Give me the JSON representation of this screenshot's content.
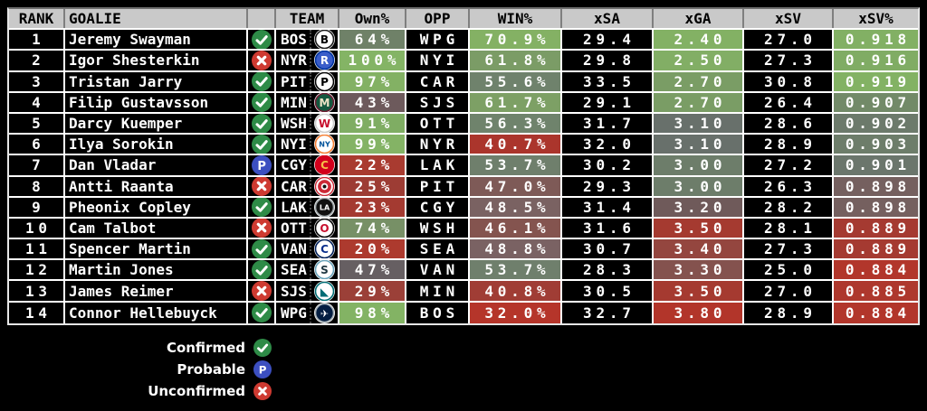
{
  "header": {
    "rank": "RANK",
    "goalie": "GOALIE",
    "status": "",
    "team": "TEAM",
    "own": "Own%",
    "opp": "OPP",
    "win": "WIN%",
    "xsa": "xSA",
    "xga": "xGA",
    "xsv": "xSV",
    "xsvpct": "xSV%"
  },
  "rows": [
    {
      "rank": "1",
      "goalie": "Jeremy Swayman",
      "status": "confirmed",
      "team": "BOS",
      "own": "64%",
      "own_bg": "#6f8168",
      "opp": "WPG",
      "win": "70.9%",
      "win_bg": "#84b164",
      "xsa": "29.4",
      "xga": "2.40",
      "xga_bg": "#83b164",
      "xsv": "27.0",
      "xsvpct": "0.918",
      "xsvpct_bg": "#82b064"
    },
    {
      "rank": "2",
      "goalie": "Igor Shesterkin",
      "status": "unconfirmed",
      "team": "NYR",
      "own": "100%",
      "own_bg": "#84b465",
      "opp": "NYI",
      "win": "61.8%",
      "win_bg": "#7b9c66",
      "xsa": "29.8",
      "xga": "2.50",
      "xga_bg": "#82ae65",
      "xsv": "27.3",
      "xsvpct": "0.916",
      "xsvpct_bg": "#80ac64"
    },
    {
      "rank": "3",
      "goalie": "Tristan Jarry",
      "status": "confirmed",
      "team": "PIT",
      "own": "97%",
      "own_bg": "#83b164",
      "opp": "CAR",
      "win": "55.6%",
      "win_bg": "#6f826c",
      "xsa": "33.5",
      "xga": "2.70",
      "xga_bg": "#7a9d65",
      "xsv": "30.8",
      "xsvpct": "0.919",
      "xsvpct_bg": "#83b264"
    },
    {
      "rank": "4",
      "goalie": "Filip Gustavsson",
      "status": "confirmed",
      "team": "MIN",
      "own": "43%",
      "own_bg": "#6d5a5c",
      "opp": "SJS",
      "win": "61.7%",
      "win_bg": "#7da065",
      "xsa": "29.1",
      "xga": "2.70",
      "xga_bg": "#7a9d65",
      "xsv": "26.4",
      "xsvpct": "0.907",
      "xsvpct_bg": "#728a68"
    },
    {
      "rank": "5",
      "goalie": "Darcy Kuemper",
      "status": "confirmed",
      "team": "WSH",
      "own": "91%",
      "own_bg": "#7fad63",
      "opp": "OTT",
      "win": "56.3%",
      "win_bg": "#6f836c",
      "xsa": "31.7",
      "xga": "3.10",
      "xga_bg": "#68706b",
      "xsv": "28.6",
      "xsvpct": "0.902",
      "xsvpct_bg": "#6c7a6b"
    },
    {
      "rank": "6",
      "goalie": "Ilya Sorokin",
      "status": "confirmed",
      "team": "NYI",
      "own": "99%",
      "own_bg": "#84b365",
      "opp": "NYR",
      "win": "40.7%",
      "win_bg": "#ab352c",
      "xsa": "32.0",
      "xga": "3.10",
      "xga_bg": "#68706b",
      "xsv": "28.9",
      "xsvpct": "0.903",
      "xsvpct_bg": "#6d7d6a"
    },
    {
      "rank": "7",
      "goalie": "Dan Vladar",
      "status": "probable",
      "team": "CGY",
      "own": "22%",
      "own_bg": "#a93b30",
      "opp": "LAK",
      "win": "53.7%",
      "win_bg": "#6f7f6c",
      "xsa": "30.2",
      "xga": "3.00",
      "xga_bg": "#6d7d6a",
      "xsv": "27.2",
      "xsvpct": "0.901",
      "xsvpct_bg": "#6b766c"
    },
    {
      "rank": "8",
      "goalie": "Antti Raanta",
      "status": "unconfirmed",
      "team": "CAR",
      "own": "25%",
      "own_bg": "#9d3c34",
      "opp": "PIT",
      "win": "47.0%",
      "win_bg": "#7e5a57",
      "xsa": "29.3",
      "xga": "3.00",
      "xga_bg": "#6d7d6a",
      "xsv": "26.3",
      "xsvpct": "0.898",
      "xsvpct_bg": "#75605f"
    },
    {
      "rank": "9",
      "goalie": "Pheonix Copley",
      "status": "confirmed",
      "team": "LAK",
      "own": "23%",
      "own_bg": "#a43a31",
      "opp": "CGY",
      "win": "48.5%",
      "win_bg": "#7a6262",
      "xsa": "31.4",
      "xga": "3.20",
      "xga_bg": "#6f5a5a",
      "xsv": "28.2",
      "xsvpct": "0.898",
      "xsvpct_bg": "#75605f"
    },
    {
      "rank": "10",
      "goalie": "Cam Talbot",
      "status": "unconfirmed",
      "team": "OTT",
      "own": "74%",
      "own_bg": "#779066",
      "opp": "WSH",
      "win": "46.1%",
      "win_bg": "#84544f",
      "xsa": "31.6",
      "xga": "3.50",
      "xga_bg": "#a53a30",
      "xsv": "28.1",
      "xsvpct": "0.889",
      "xsvpct_bg": "#a53a31"
    },
    {
      "rank": "11",
      "goalie": "Spencer Martin",
      "status": "confirmed",
      "team": "VAN",
      "own": "20%",
      "own_bg": "#ad3a2e",
      "opp": "SEA",
      "win": "48.8%",
      "win_bg": "#7a6263",
      "xsa": "30.7",
      "xga": "3.40",
      "xga_bg": "#94463f",
      "xsv": "27.3",
      "xsvpct": "0.889",
      "xsvpct_bg": "#a53a31"
    },
    {
      "rank": "12",
      "goalie": "Martin Jones",
      "status": "confirmed",
      "team": "SEA",
      "own": "47%",
      "own_bg": "#665f62",
      "opp": "VAN",
      "win": "53.7%",
      "win_bg": "#6f7f6c",
      "xsa": "28.3",
      "xga": "3.30",
      "xga_bg": "#84524e",
      "xsv": "25.0",
      "xsvpct": "0.884",
      "xsvpct_bg": "#b2362b"
    },
    {
      "rank": "13",
      "goalie": "James Reimer",
      "status": "unconfirmed",
      "team": "SJS",
      "own": "29%",
      "own_bg": "#9b4038",
      "opp": "MIN",
      "win": "40.8%",
      "win_bg": "#a03d35",
      "xsa": "30.5",
      "xga": "3.50",
      "xga_bg": "#a53a30",
      "xsv": "27.0",
      "xsvpct": "0.885",
      "xsvpct_bg": "#ae382d"
    },
    {
      "rank": "14",
      "goalie": "Connor Hellebuyck",
      "status": "confirmed",
      "team": "WPG",
      "own": "98%",
      "own_bg": "#83b364",
      "opp": "BOS",
      "win": "32.0%",
      "win_bg": "#b5352a",
      "xsa": "32.7",
      "xga": "3.80",
      "xga_bg": "#b2352a",
      "xsv": "28.9",
      "xsvpct": "0.884",
      "xsvpct_bg": "#b2362b"
    }
  ],
  "legend": [
    {
      "label": "Confirmed",
      "status": "confirmed"
    },
    {
      "label": "Probable",
      "status": "probable"
    },
    {
      "label": "Unconfirmed",
      "status": "unconfirmed"
    }
  ],
  "status_colors": {
    "confirmed": "#2e8b47",
    "probable": "#3c4fc0",
    "unconfirmed": "#ce3a31"
  },
  "logos": {
    "BOS": {
      "bg": "#ffffff",
      "ring": "#1a1a1a",
      "fg": "#000000",
      "glyph": "B",
      "fs": 12
    },
    "NYR": {
      "bg": "#3a5dc9",
      "ring": "#0033a0",
      "fg": "#ffffff",
      "glyph": "R",
      "fs": 12
    },
    "PIT": {
      "bg": "#ffffff",
      "ring": "#000000",
      "fg": "#000000",
      "glyph": "P",
      "fs": 12
    },
    "MIN": {
      "bg": "#15583f",
      "ring": "#6d1c32",
      "fg": "#eee3c6",
      "glyph": "M",
      "fs": 12
    },
    "WSH": {
      "bg": "#ffffff",
      "ring": "#cccccc",
      "fg": "#c8102e",
      "glyph": "W",
      "fs": 12
    },
    "NYI": {
      "bg": "#ffffff",
      "ring": "#f57d31",
      "fg": "#00539b",
      "glyph": "NY",
      "fs": 8
    },
    "CGY": {
      "bg": "#d2001c",
      "ring": "#d2001c",
      "fg": "#f6be48",
      "glyph": "C",
      "fs": 12
    },
    "CAR": {
      "bg": "#ffffff",
      "ring": "#cc2936",
      "fg": "#cc2936",
      "glyph": "",
      "fs": 14,
      "special": "car"
    },
    "LAK": {
      "bg": "#111111",
      "ring": "#a2aaad",
      "fg": "#ffffff",
      "glyph": "LA",
      "fs": 8
    },
    "OTT": {
      "bg": "#ffffff",
      "ring": "#000000",
      "fg": "#c8102e",
      "glyph": "O",
      "fs": 12
    },
    "VAN": {
      "bg": "#ffffff",
      "ring": "#00205b",
      "fg": "#0a2f8c",
      "glyph": "C",
      "fs": 12
    },
    "SEA": {
      "bg": "#ffffff",
      "ring": "#68a2b9",
      "fg": "#1d3540",
      "glyph": "S",
      "fs": 12
    },
    "SJS": {
      "bg": "#ffffff",
      "ring": "#006d75",
      "fg": "#006d75",
      "glyph": "◣",
      "fs": 12
    },
    "WPG": {
      "bg": "#041e42",
      "ring": "#a7b1b7",
      "fg": "#ffffff",
      "glyph": "✈",
      "fs": 11
    }
  }
}
